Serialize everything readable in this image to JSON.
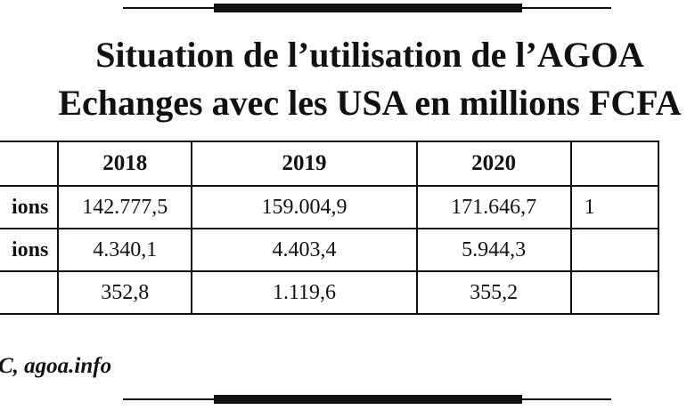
{
  "title": {
    "line1": "Situation de l’utilisation de l’AGOA",
    "line2": "Echanges avec les USA en millions FCFA"
  },
  "table": {
    "headers": [
      "",
      "2018",
      "2019",
      "2020",
      ""
    ],
    "rows": [
      {
        "label": "ions",
        "values": [
          "142.777,5",
          "159.004,9",
          "171.646,7",
          "1"
        ]
      },
      {
        "label": "ions",
        "values": [
          "4.340,1",
          "4.403,4",
          "5.944,3",
          ""
        ]
      },
      {
        "label": "",
        "values": [
          "352,8",
          "1.119,6",
          "355,2",
          ""
        ]
      }
    ]
  },
  "source": "C, agoa.info"
}
